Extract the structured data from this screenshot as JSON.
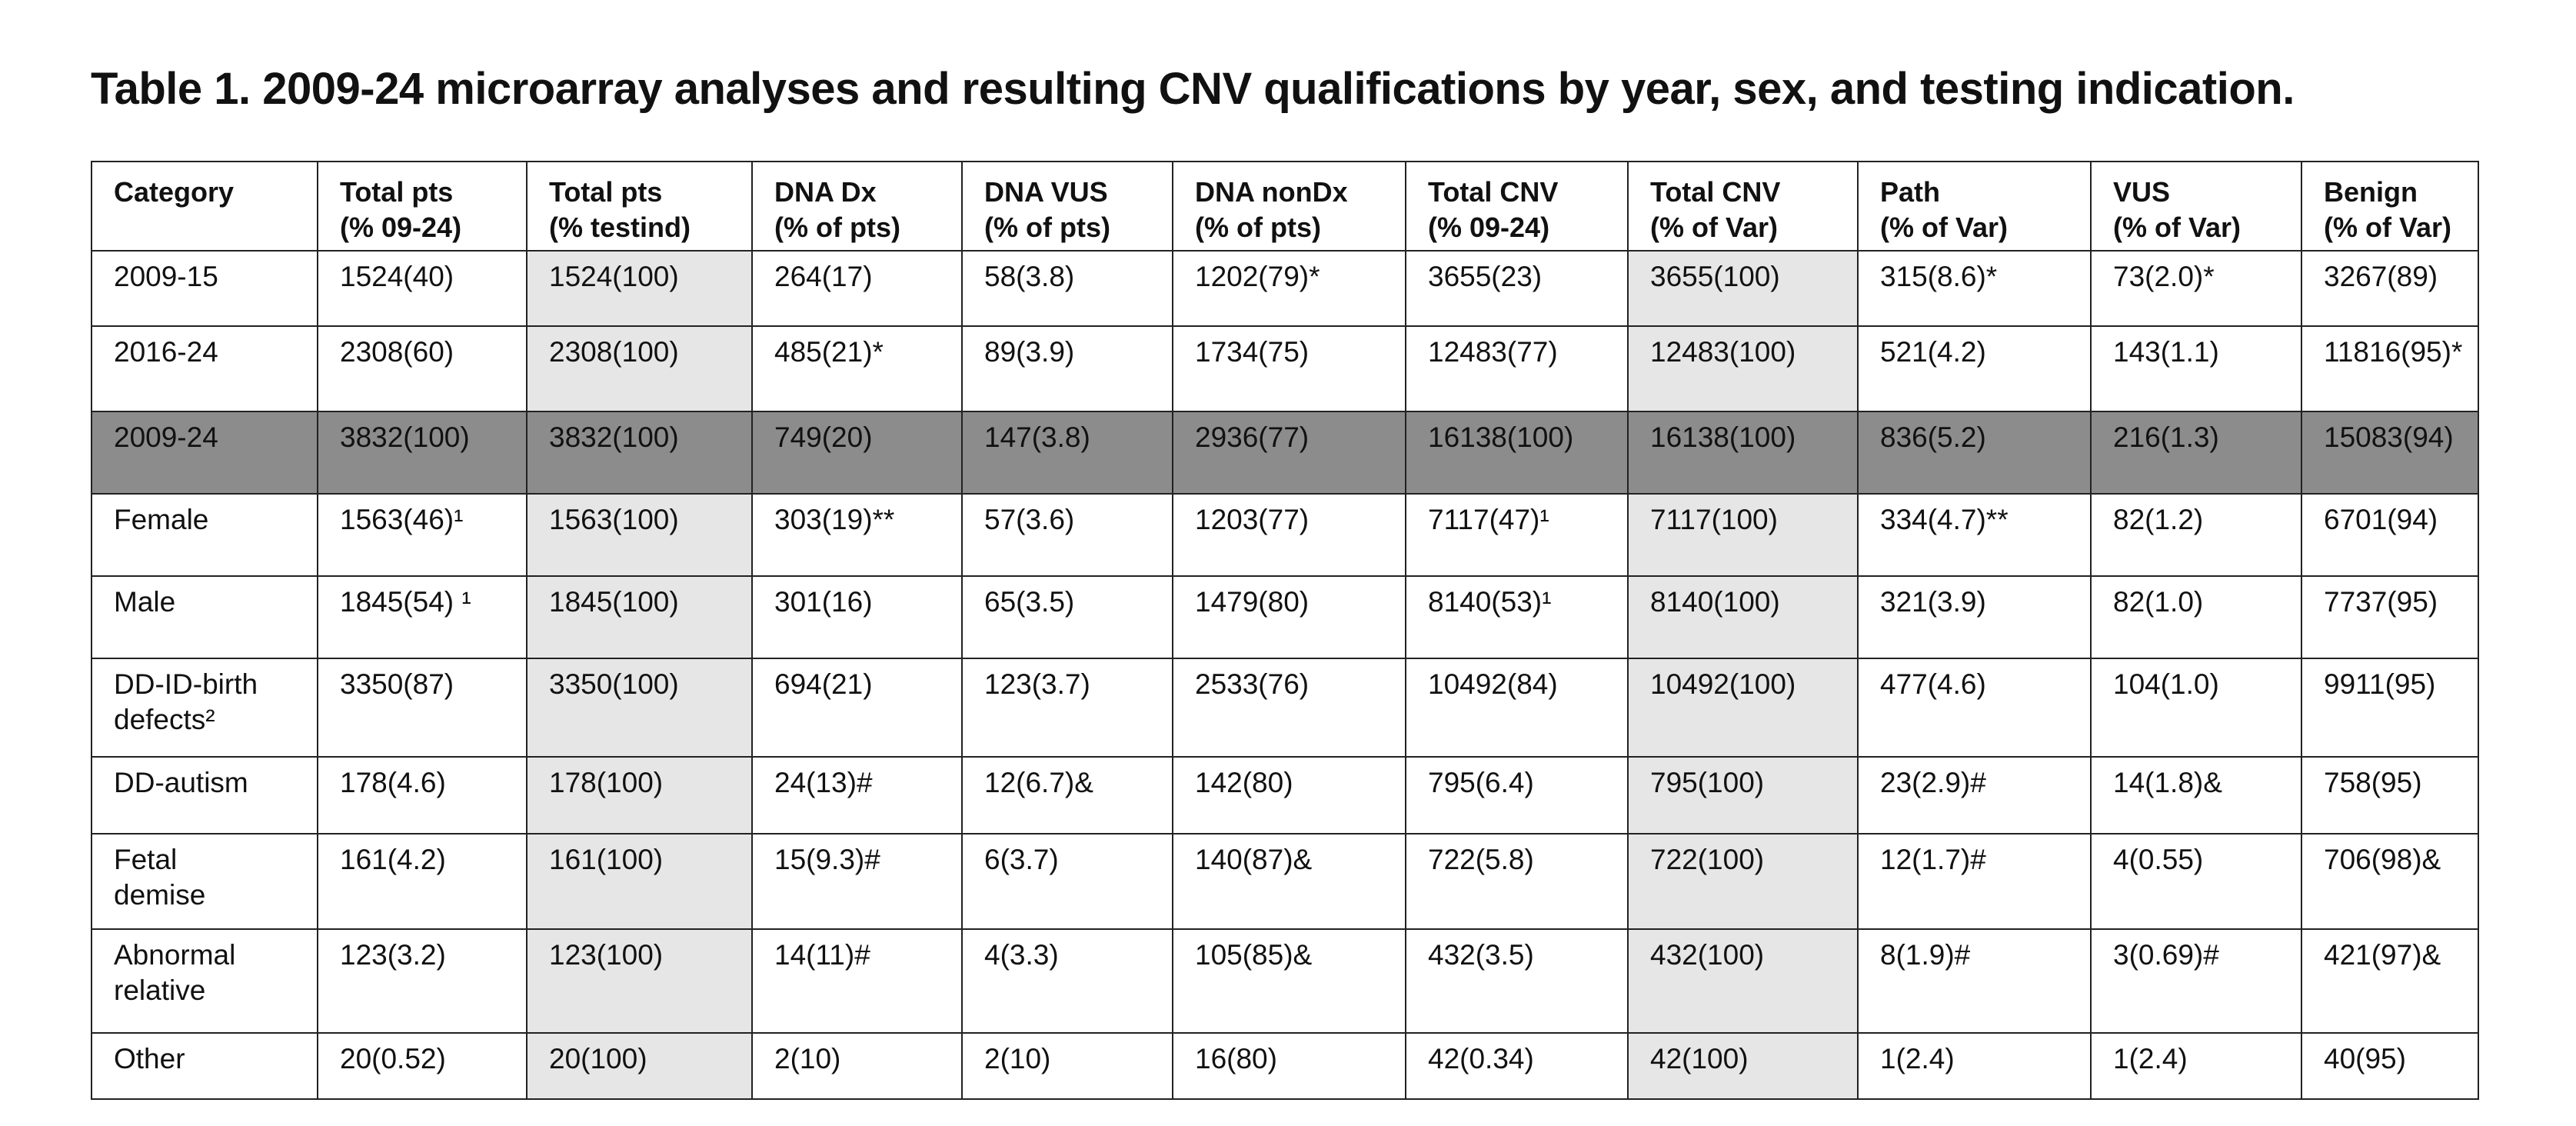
{
  "header": {
    "title": "Table 1. 2009-24 microarray analyses and resulting CNV qualifications by year, sex, and testing indication."
  },
  "table": {
    "columns": [
      "Category",
      "Total pts\n(% 09-24)",
      "Total pts\n(% testind)",
      "DNA Dx\n(% of pts)",
      "DNA VUS\n(% of pts)",
      "DNA nonDx\n(% of pts)",
      "Total CNV\n(% 09-24)",
      "Total CNV\n(% of Var)",
      "Path\n(% of Var)",
      "VUS\n(% of Var)",
      "Benign\n(% of Var)"
    ],
    "rows": [
      [
        "2009-15",
        "1524(40)",
        "1524(100)",
        "264(17)",
        "58(3.8)",
        "1202(79)*",
        "3655(23)",
        "3655(100)",
        "315(8.6)*",
        "73(2.0)*",
        "3267(89)"
      ],
      [
        "2016-24",
        "2308(60)",
        "2308(100)",
        "485(21)*",
        "89(3.9)",
        "1734(75)",
        "12483(77)",
        "12483(100)",
        "521(4.2)",
        "143(1.1)",
        "11816(95)*"
      ],
      [
        "2009-24",
        "3832(100)",
        "3832(100)",
        "749(20)",
        "147(3.8)",
        "2936(77)",
        "16138(100)",
        "16138(100)",
        "836(5.2)",
        "216(1.3)",
        "15083(94)"
      ],
      [
        "Female",
        "1563(46)¹",
        "1563(100)",
        "303(19)**",
        "57(3.6)",
        "1203(77)",
        "7117(47)¹",
        "7117(100)",
        "334(4.7)**",
        "82(1.2)",
        "6701(94)"
      ],
      [
        "Male",
        "1845(54) ¹",
        "1845(100)",
        "301(16)",
        "65(3.5)",
        "1479(80)",
        "8140(53)¹",
        "8140(100)",
        "321(3.9)",
        "82(1.0)",
        "7737(95)"
      ],
      [
        "DD-ID-birth\ndefects²",
        "3350(87)",
        "3350(100)",
        "694(21)",
        "123(3.7)",
        "2533(76)",
        "10492(84)",
        "10492(100)",
        "477(4.6)",
        "104(1.0)",
        "9911(95)"
      ],
      [
        "DD-autism",
        "178(4.6)",
        "178(100)",
        "24(13)#",
        "12(6.7)&",
        "142(80)",
        "795(6.4)",
        "795(100)",
        "23(2.9)#",
        "14(1.8)&",
        "758(95)"
      ],
      [
        "Fetal\ndemise",
        "161(4.2)",
        "161(100)",
        "15(9.3)#",
        "6(3.7)",
        "140(87)&",
        "722(5.8)",
        "722(100)",
        "12(1.7)#",
        "4(0.55)",
        "706(98)&"
      ],
      [
        "Abnormal\nrelative",
        "123(3.2)",
        "123(100)",
        "14(11)#",
        "4(3.3)",
        "105(85)&",
        "432(3.5)",
        "432(100)",
        "8(1.9)#",
        "3(0.69)#",
        "421(97)&"
      ],
      [
        "Other",
        "20(0.52)",
        "20(100)",
        "2(10)",
        "2(10)",
        "16(80)",
        "42(0.34)",
        "42(100)",
        "1(2.4)",
        "1(2.4)",
        "40(95)"
      ]
    ]
  }
}
